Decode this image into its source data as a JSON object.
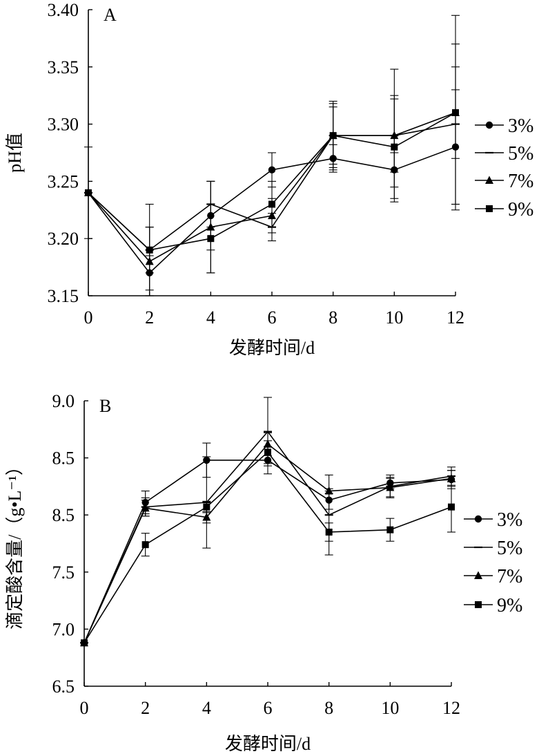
{
  "chart_data": [
    {
      "type": "line",
      "panel_label": "A",
      "x": [
        0,
        2,
        4,
        6,
        8,
        10,
        12
      ],
      "x_ticks": [
        "0",
        "2",
        "4",
        "6",
        "8",
        "10",
        "12"
      ],
      "y_ticks": [
        "3.15",
        "3.20",
        "3.25",
        "3.30",
        "3.35",
        "3.40"
      ],
      "ylim": [
        3.15,
        3.4
      ],
      "xlim": [
        0,
        12
      ],
      "xlabel": "发酵时间/d",
      "ylabel": "pH值",
      "series": [
        {
          "name": "3%",
          "marker": "circle",
          "values": [
            3.24,
            3.17,
            3.22,
            3.26,
            3.27,
            3.26,
            3.28
          ],
          "errors": [
            0.0,
            0.015,
            0.03,
            0.015,
            0.012,
            0.015,
            0.05
          ]
        },
        {
          "name": "5%",
          "marker": "dash",
          "values": [
            3.24,
            3.19,
            3.23,
            3.21,
            3.29,
            3.29,
            3.3
          ],
          "errors": [
            0.04,
            0.02,
            0.02,
            0.012,
            0.03,
            0.058,
            0.07
          ]
        },
        {
          "name": "7%",
          "marker": "triangle",
          "values": [
            3.24,
            3.18,
            3.21,
            3.22,
            3.29,
            3.29,
            3.31
          ],
          "errors": [
            0.0,
            0.03,
            0.04,
            0.015,
            0.028,
            0.032,
            0.04
          ]
        },
        {
          "name": "9%",
          "marker": "square",
          "values": [
            3.24,
            3.19,
            3.2,
            3.23,
            3.29,
            3.28,
            3.31
          ],
          "errors": [
            0.0,
            0.04,
            0.03,
            0.02,
            0.025,
            0.045,
            0.085
          ]
        }
      ]
    },
    {
      "type": "line",
      "panel_label": "B",
      "x": [
        0,
        2,
        4,
        6,
        8,
        10,
        12
      ],
      "x_ticks": [
        "0",
        "2",
        "4",
        "6",
        "8",
        "10",
        "12"
      ],
      "y_ticks": [
        "6.5",
        "7.0",
        "7.5",
        "8.5",
        "8.5",
        "9.0"
      ],
      "ylim": [
        6.5,
        9.0
      ],
      "xlim": [
        0,
        12
      ],
      "xlabel": "发酵时间/d",
      "ylabel": "滴定酸含量/（g•L⁻¹）",
      "series": [
        {
          "name": "3%",
          "marker": "circle",
          "values": [
            6.88,
            8.11,
            8.48,
            8.48,
            8.13,
            8.28,
            8.31
          ],
          "errors": [
            0.0,
            0.1,
            0.15,
            0.12,
            0.08,
            0.05,
            0.08
          ]
        },
        {
          "name": "5%",
          "marker": "dash",
          "values": [
            6.88,
            8.07,
            8.11,
            8.73,
            8.0,
            8.25,
            8.34
          ],
          "errors": [
            0.0,
            0.08,
            0.4,
            0.3,
            0.35,
            0.1,
            0.08
          ]
        },
        {
          "name": "7%",
          "marker": "triangle",
          "values": [
            6.88,
            8.06,
            7.98,
            8.62,
            8.21,
            8.24,
            8.32
          ],
          "errors": [
            0.0,
            0.07,
            0.05,
            0.1,
            0.02,
            0.08,
            0.07
          ]
        },
        {
          "name": "9%",
          "marker": "square",
          "values": [
            6.88,
            7.74,
            8.07,
            8.55,
            7.85,
            7.87,
            8.07
          ],
          "errors": [
            0.0,
            0.1,
            0.05,
            0.1,
            0.08,
            0.1,
            0.22
          ]
        }
      ]
    }
  ]
}
